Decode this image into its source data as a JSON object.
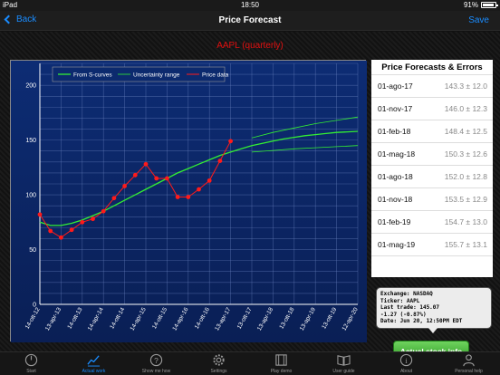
{
  "status": {
    "device": "iPad",
    "time": "18:50",
    "battery": "91%"
  },
  "nav": {
    "back_label": "Back",
    "title": "Price Forecast",
    "save_label": "Save"
  },
  "chart_data": {
    "type": "line",
    "title": "AAPL (quarterly)",
    "ylim": [
      0,
      220
    ],
    "yticks": [
      0,
      50,
      100,
      150,
      200
    ],
    "x_tick_labels": [
      "14-ott-12",
      "13-apr-13",
      "14-ott-13",
      "14-apr-14",
      "14-ott-14",
      "14-apr-15",
      "14-ott-15",
      "14-apr-16",
      "14-ott-16",
      "13-apr-17",
      "13-ott-17",
      "13-apr-18",
      "13-ott-18",
      "13-apr-19",
      "13-ott-19",
      "12-apr-20"
    ],
    "legend": {
      "placement": "top-left",
      "entries": [
        "From S-curves",
        "Uncertainty range",
        "Price data"
      ]
    },
    "series": [
      {
        "name": "Price data",
        "color": "#ff1a1a",
        "x": [
          0,
          0.5,
          1,
          1.5,
          2,
          2.5,
          3,
          3.5,
          4,
          4.5,
          5,
          5.5,
          6,
          6.5,
          7,
          7.5,
          8,
          8.5,
          9
        ],
        "values": [
          82,
          67,
          61,
          68,
          75,
          78,
          85,
          97,
          108,
          118,
          128,
          115,
          115,
          98,
          98,
          105,
          113,
          131,
          149
        ]
      },
      {
        "name": "From S-curves",
        "color": "#33ee33",
        "x": [
          0,
          0.5,
          1,
          1.5,
          2,
          2.5,
          3,
          3.5,
          4,
          4.5,
          5,
          5.5,
          6,
          6.5,
          7,
          7.5,
          8,
          8.5,
          9,
          9.5,
          10,
          10.5,
          11,
          11.5,
          12,
          12.5,
          13,
          13.5,
          14,
          14.5,
          15
        ],
        "values": [
          75,
          72,
          72,
          74,
          77,
          81,
          85,
          90,
          95,
          100,
          105,
          110,
          115,
          120,
          124,
          128,
          132,
          136,
          139,
          142,
          145,
          147,
          149,
          151,
          152.5,
          154,
          155,
          156,
          157,
          157.5,
          158
        ]
      },
      {
        "name": "Uncertainty upper",
        "color": "#33ee33",
        "x": [
          10,
          11,
          12,
          13,
          14,
          15
        ],
        "values": [
          152,
          157,
          161,
          165,
          168,
          171
        ]
      },
      {
        "name": "Uncertainty lower",
        "color": "#33ee33",
        "x": [
          10,
          11,
          12,
          13,
          14,
          15
        ],
        "values": [
          139,
          140.5,
          142,
          143,
          144,
          145
        ]
      }
    ]
  },
  "forecasts": {
    "title": "Price Forecasts & Errors",
    "rows": [
      {
        "date": "01-ago-17",
        "value": "143.3  ±  12.0"
      },
      {
        "date": "01-nov-17",
        "value": "146.0  ±  12.3"
      },
      {
        "date": "01-feb-18",
        "value": "148.4  ±  12.5"
      },
      {
        "date": "01-mag-18",
        "value": "150.3  ±  12.6"
      },
      {
        "date": "01-ago-18",
        "value": "152.0  ±  12.8"
      },
      {
        "date": "01-nov-18",
        "value": "153.5  ±  12.9"
      },
      {
        "date": "01-feb-19",
        "value": "154.7  ±  13.0"
      },
      {
        "date": "01-mag-19",
        "value": "155.7  ±  13.1"
      }
    ]
  },
  "stock_info": {
    "exchange": "Exchange: NASDAQ",
    "ticker": "Ticker: AAPL",
    "last_trade": "Last trade: 145.07",
    "change": "-1.27 (-0.87%)",
    "date": "Date: Jun 20, 12:50PM EDT"
  },
  "actual_button_label": "Actual stock info",
  "tabs": [
    {
      "label": "Start",
      "icon": "power-icon"
    },
    {
      "label": "Actual work",
      "icon": "chart-icon",
      "active": true
    },
    {
      "label": "Show me how",
      "icon": "question-icon"
    },
    {
      "label": "Settings",
      "icon": "gear-icon"
    },
    {
      "label": "Play demo",
      "icon": "film-icon"
    },
    {
      "label": "User guide",
      "icon": "book-icon"
    },
    {
      "label": "About",
      "icon": "info-icon"
    },
    {
      "label": "Personal help",
      "icon": "person-icon"
    }
  ]
}
